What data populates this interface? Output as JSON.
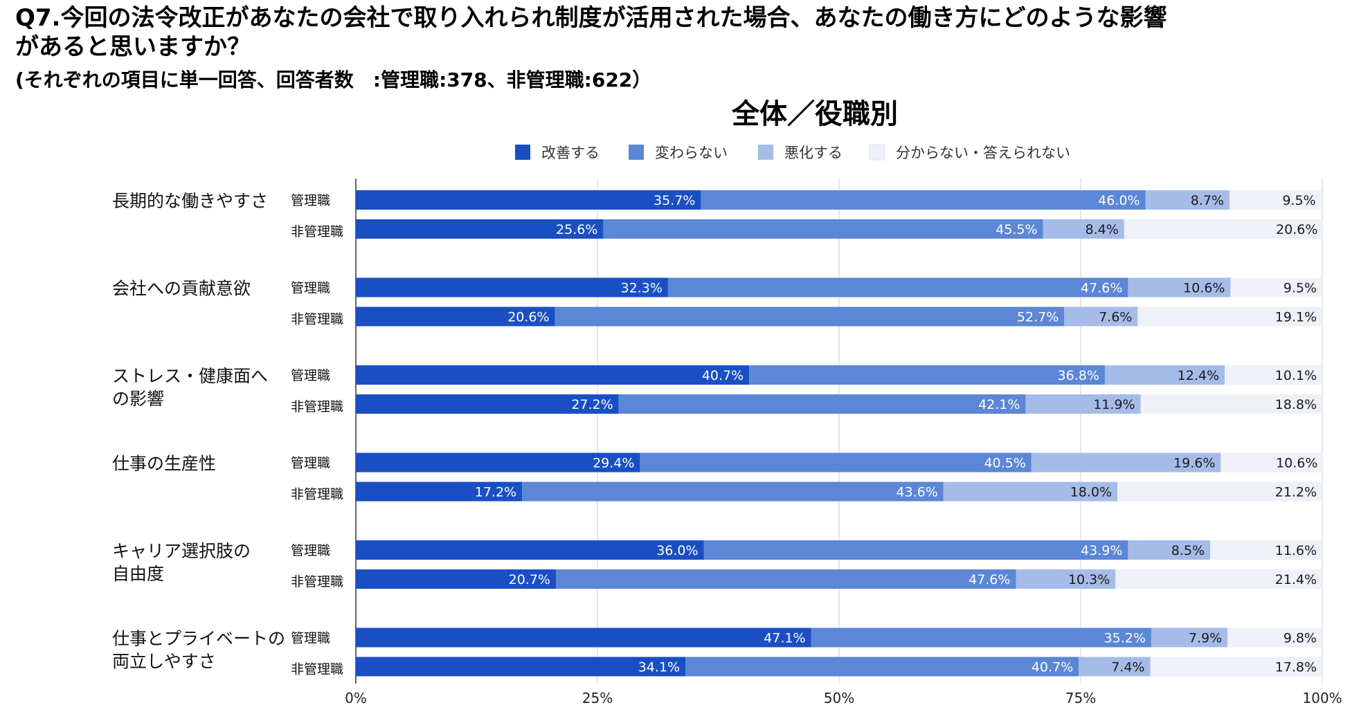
{
  "header": {
    "line1": "Q7.今回の法令改正があなたの会社で取り入れられ制度が活用された場合、あなたの働き方にどのような影響",
    "line2": "があると思いますか？",
    "line3": "(それぞれの項目に単一回答、回答者数　:管理職:378、非管理職:622）"
  },
  "chart_data": {
    "type": "bar",
    "orientation": "horizontal",
    "stacked": "percent",
    "title": "全体／役職別",
    "legend_position": "top",
    "series": [
      {
        "name": "改善する",
        "color": "#1a4fc4"
      },
      {
        "name": "変わらない",
        "color": "#5c86d6"
      },
      {
        "name": "悪化する",
        "color": "#a6bce8"
      },
      {
        "name": "分からない・答えられない",
        "color": "#eef1f7"
      }
    ],
    "categories": [
      {
        "label": [
          "長期的な働きやすさ"
        ],
        "rows": [
          {
            "group": "管理職",
            "values": [
              35.7,
              46.0,
              8.7,
              9.5
            ]
          },
          {
            "group": "非管理職",
            "values": [
              25.6,
              45.5,
              8.4,
              20.6
            ]
          }
        ]
      },
      {
        "label": [
          "会社への貢献意欲"
        ],
        "rows": [
          {
            "group": "管理職",
            "values": [
              32.3,
              47.6,
              10.6,
              9.5
            ]
          },
          {
            "group": "非管理職",
            "values": [
              20.6,
              52.7,
              7.6,
              19.1
            ]
          }
        ]
      },
      {
        "label": [
          "ストレス・健康面へ",
          "の影響"
        ],
        "rows": [
          {
            "group": "管理職",
            "values": [
              40.7,
              36.8,
              12.4,
              10.1
            ]
          },
          {
            "group": "非管理職",
            "values": [
              27.2,
              42.1,
              11.9,
              18.8
            ]
          }
        ]
      },
      {
        "label": [
          "仕事の生産性"
        ],
        "rows": [
          {
            "group": "管理職",
            "values": [
              29.4,
              40.5,
              19.6,
              10.6
            ]
          },
          {
            "group": "非管理職",
            "values": [
              17.2,
              43.6,
              18.0,
              21.2
            ]
          }
        ]
      },
      {
        "label": [
          "キャリア選択肢の",
          "自由度"
        ],
        "rows": [
          {
            "group": "管理職",
            "values": [
              36.0,
              43.9,
              8.5,
              11.6
            ]
          },
          {
            "group": "非管理職",
            "values": [
              20.7,
              47.6,
              10.3,
              21.4
            ]
          }
        ]
      },
      {
        "label": [
          "仕事とプライベートの",
          "両立しやすさ"
        ],
        "rows": [
          {
            "group": "管理職",
            "values": [
              47.1,
              35.2,
              7.9,
              9.8
            ]
          },
          {
            "group": "非管理職",
            "values": [
              34.1,
              40.7,
              7.4,
              17.8
            ]
          }
        ]
      }
    ],
    "xaxis": {
      "ticks": [
        "0%",
        "25%",
        "50%",
        "75%",
        "100%"
      ],
      "range": [
        0,
        100
      ]
    },
    "grid": true
  }
}
